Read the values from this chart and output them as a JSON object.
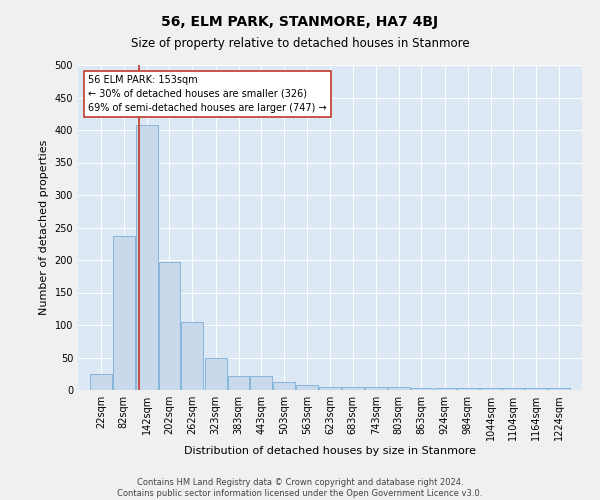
{
  "title": "56, ELM PARK, STANMORE, HA7 4BJ",
  "subtitle": "Size of property relative to detached houses in Stanmore",
  "xlabel": "Distribution of detached houses by size in Stanmore",
  "ylabel": "Number of detached properties",
  "bin_labels": [
    "22sqm",
    "82sqm",
    "142sqm",
    "202sqm",
    "262sqm",
    "323sqm",
    "383sqm",
    "443sqm",
    "503sqm",
    "563sqm",
    "623sqm",
    "683sqm",
    "743sqm",
    "803sqm",
    "863sqm",
    "924sqm",
    "984sqm",
    "1044sqm",
    "1104sqm",
    "1164sqm",
    "1224sqm"
  ],
  "bin_edges": [
    22,
    82,
    142,
    202,
    262,
    323,
    383,
    443,
    503,
    563,
    623,
    683,
    743,
    803,
    863,
    924,
    984,
    1044,
    1104,
    1164,
    1224
  ],
  "bar_heights": [
    25,
    237,
    407,
    197,
    105,
    49,
    22,
    22,
    12,
    8,
    5,
    5,
    5,
    5,
    3,
    3,
    3,
    3,
    3,
    3,
    3
  ],
  "bar_color": "#c9d9ec",
  "bar_edge_color": "#7aaed6",
  "vline_color": "#c0392b",
  "vline_x": 153,
  "annotation_header": "56 ELM PARK: 153sqm",
  "annotation_line1": "← 30% of detached houses are smaller (326)",
  "annotation_line2": "69% of semi-detached houses are larger (747) →",
  "box_facecolor": "#ffffff",
  "box_edgecolor": "#c0392b",
  "ylim": [
    0,
    500
  ],
  "yticks": [
    0,
    50,
    100,
    150,
    200,
    250,
    300,
    350,
    400,
    450,
    500
  ],
  "plot_bg_color": "#dce9f5",
  "fig_bg_color": "#f0f0f0",
  "footer_line1": "Contains HM Land Registry data © Crown copyright and database right 2024.",
  "footer_line2": "Contains public sector information licensed under the Open Government Licence v3.0.",
  "title_fontsize": 10,
  "subtitle_fontsize": 8.5,
  "axis_label_fontsize": 8,
  "tick_fontsize": 7,
  "footer_fontsize": 6
}
